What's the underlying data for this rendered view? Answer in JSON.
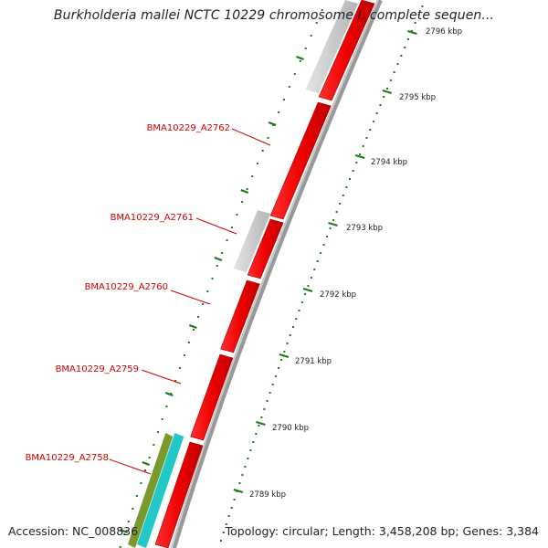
{
  "title": "Burkholderia mallei NCTC 10229 chromosome I, complete sequen...",
  "accession": "Accession: NC_008836",
  "summary": "Topology: circular; Length: 3,458,208 bp; Genes: 3,384",
  "scale_labels": [
    "2796 kbp",
    "2795 kbp",
    "2794 kbp",
    "2793 kbp",
    "2792 kbp",
    "2791 kbp",
    "2790 kbp",
    "2789 kbp"
  ],
  "gene_labels": [
    "BMA10229_A2762",
    "BMA10229_A2761",
    "BMA10229_A2760",
    "BMA10229_A2759",
    "BMA10229_A2758"
  ],
  "colors": {
    "feature_forward": "#ff0000",
    "feature_other": "#c8c8c8",
    "feature_cyan": "#20c8c8",
    "feature_olive": "#7a9a30",
    "backbone": "#888888",
    "tick": "#1a7a1a",
    "label_gene": "#cc0000",
    "label_scale": "#222222"
  }
}
